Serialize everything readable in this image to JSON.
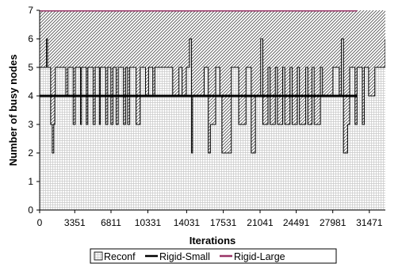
{
  "chart_data": {
    "type": "area",
    "title": "",
    "xlabel": "Iterations",
    "ylabel": "Number of busy nodes",
    "ylim": [
      0,
      7
    ],
    "xlim": [
      0,
      33000
    ],
    "grid": true,
    "legend_position": "bottom",
    "x_ticks": [
      "0",
      "3351",
      "6811",
      "10331",
      "14031",
      "17531",
      "21041",
      "24491",
      "27981",
      "31471"
    ],
    "x_tick_values": [
      0,
      3351,
      6811,
      10331,
      14031,
      17531,
      21041,
      24491,
      27981,
      31471
    ],
    "y_ticks": [
      "0",
      "1",
      "2",
      "3",
      "4",
      "5",
      "6",
      "7"
    ],
    "series": [
      {
        "name": "Reconf",
        "style": "area",
        "x": [
          0,
          650,
          750,
          1050,
          1200,
          1350,
          1450,
          1500,
          2500,
          2700,
          3200,
          3400,
          3900,
          4000,
          4450,
          4600,
          5100,
          5300,
          5700,
          5800,
          6300,
          6500,
          6800,
          7000,
          7300,
          7500,
          8000,
          8200,
          8400,
          8600,
          9200,
          9600,
          10100,
          10400,
          10800,
          11000,
          12700,
          13300,
          13600,
          14000,
          14300,
          14500,
          14600,
          15700,
          16100,
          16300,
          16800,
          17200,
          17400,
          18300,
          19000,
          19700,
          20200,
          20600,
          21100,
          21300,
          21800,
          22000,
          22500,
          22700,
          23200,
          23400,
          23900,
          24100,
          24600,
          24800,
          25400,
          25600,
          26000,
          26200,
          26800,
          27000,
          28000,
          28600,
          28800,
          29000,
          29400,
          29600,
          30100,
          30300,
          30800,
          31000,
          31400,
          32000,
          33000
        ],
        "y": [
          5,
          6,
          5,
          3,
          2,
          3,
          4,
          5,
          4,
          5,
          3,
          5,
          3,
          5,
          3,
          5,
          3,
          5,
          3,
          5,
          3,
          5,
          3,
          5,
          3,
          5,
          3,
          5,
          3,
          5,
          3,
          5,
          4,
          5,
          4,
          5,
          4,
          5,
          4,
          5,
          6,
          2,
          4,
          5,
          2,
          3,
          5,
          4,
          2,
          5,
          3,
          5,
          2,
          4,
          6,
          3,
          5,
          3,
          5,
          3,
          5,
          3,
          5,
          3,
          5,
          3,
          5,
          3,
          5,
          3,
          5,
          4,
          5,
          4,
          6,
          2,
          3,
          5,
          3,
          5,
          3,
          5,
          4,
          5,
          6
        ]
      },
      {
        "name": "Rigid-Small",
        "style": "line",
        "x": [
          0,
          30300
        ],
        "y": [
          4,
          4
        ],
        "color": "#000000"
      },
      {
        "name": "Rigid-Large",
        "style": "line",
        "x": [
          0,
          30300
        ],
        "y": [
          7,
          7
        ],
        "color": "#993366"
      }
    ],
    "colors": {
      "rigid_small": "#000000",
      "rigid_large": "#993366",
      "reconf_line": "#000000",
      "grid": "#c8c8c8"
    }
  }
}
